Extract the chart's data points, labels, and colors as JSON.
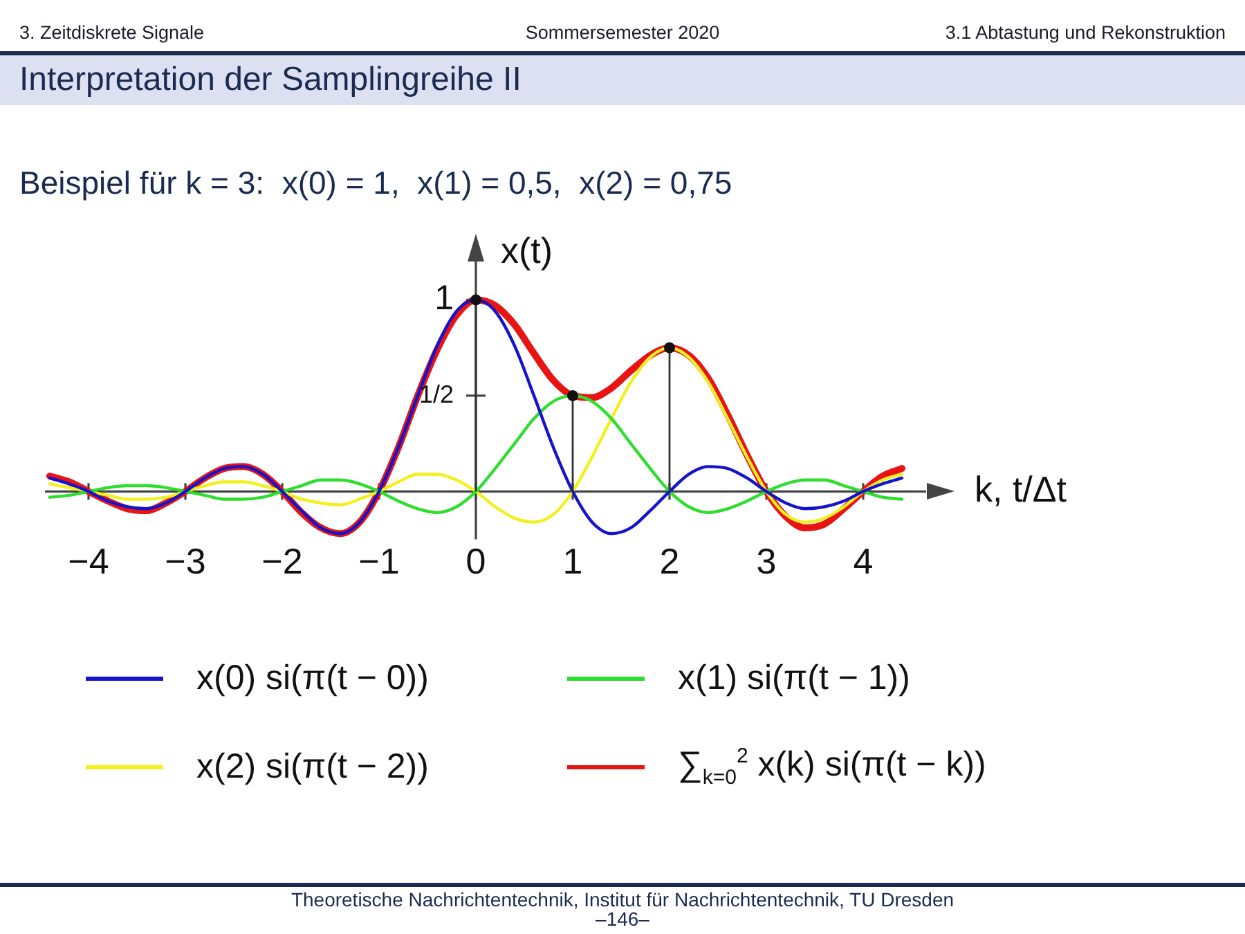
{
  "chart_data": {
    "type": "line",
    "title": "Interpretation der Samplingreihe II",
    "subtitle": "Beispiel für k = 3:  x(0) = 1,  x(1) = 0,5,  x(2) = 0,75",
    "xlabel": "k, t/Δt",
    "ylabel": "x(t)",
    "annotations": [
      "3. Zeitdiskrete Signale",
      "Sommersemester 2020",
      "3.1 Abtastung und Rekonstruktion",
      "Theoretische Nachrichtentechnik, Institut für Nachrichtentechnik, TU Dresden",
      "–146–"
    ],
    "x": [
      -4.4,
      -4.2,
      -4,
      -3.8,
      -3.6,
      -3.4,
      -3.2,
      -3,
      -2.8,
      -2.6,
      -2.4,
      -2.2,
      -2,
      -1.8,
      -1.6,
      -1.4,
      -1.2,
      -1,
      -0.8,
      -0.6,
      -0.4,
      -0.2,
      0,
      0.2,
      0.4,
      0.6,
      0.8,
      1,
      1.2,
      1.4,
      1.6,
      1.8,
      2,
      2.2,
      2.4,
      2.6,
      2.8,
      3,
      3.2,
      3.4,
      3.6,
      3.8,
      4,
      4.2,
      4.4
    ],
    "series": [
      {
        "name": "x(0) si(π(t − 0))",
        "color": "#1414cc",
        "values": [
          0.07,
          0.04,
          0,
          -0.05,
          -0.08,
          -0.09,
          -0.06,
          0,
          0.07,
          0.12,
          0.13,
          0.09,
          0,
          -0.1,
          -0.19,
          -0.22,
          -0.16,
          0,
          0.23,
          0.5,
          0.76,
          0.94,
          1,
          0.94,
          0.76,
          0.5,
          0.23,
          0,
          -0.16,
          -0.22,
          -0.19,
          -0.1,
          0,
          0.09,
          0.13,
          0.12,
          0.07,
          0,
          -0.06,
          -0.09,
          -0.08,
          -0.05,
          0,
          0.04,
          0.07
        ]
      },
      {
        "name": "x(1) si(π(t − 1))",
        "color": "#2ede2e",
        "values": [
          -0.03,
          -0.02,
          0,
          0.02,
          0.03,
          0.03,
          0.02,
          0,
          -0.02,
          -0.04,
          -0.04,
          -0.03,
          0,
          0.03,
          0.06,
          0.06,
          0.04,
          0,
          -0.05,
          -0.09,
          -0.11,
          -0.08,
          0,
          0.12,
          0.25,
          0.38,
          0.47,
          0.5,
          0.47,
          0.38,
          0.25,
          0.12,
          0,
          -0.08,
          -0.11,
          -0.09,
          -0.05,
          0,
          0.04,
          0.06,
          0.06,
          0.03,
          0,
          -0.03,
          -0.04
        ]
      },
      {
        "name": "x(2) si(π(t − 2))",
        "color": "#f2f01e",
        "values": [
          0.04,
          0.02,
          0,
          -0.02,
          -0.04,
          -0.04,
          -0.03,
          0,
          0.03,
          0.05,
          0.05,
          0.03,
          0,
          -0.04,
          -0.06,
          -0.07,
          -0.04,
          0,
          0.05,
          0.09,
          0.09,
          0.06,
          0,
          -0.08,
          -0.14,
          -0.16,
          -0.12,
          0,
          0.18,
          0.38,
          0.57,
          0.7,
          0.75,
          0.7,
          0.57,
          0.38,
          0.18,
          0,
          -0.12,
          -0.16,
          -0.14,
          -0.08,
          0,
          0.06,
          0.09
        ]
      },
      {
        "name": "∑$_{k=0}$$^{2}$ x(k) si(π(t − k))",
        "color": "#e81414",
        "values": [
          0.08,
          0.05,
          0,
          -0.05,
          -0.09,
          -0.1,
          -0.06,
          0,
          0.07,
          0.12,
          0.13,
          0.09,
          0,
          -0.11,
          -0.19,
          -0.22,
          -0.16,
          0,
          0.23,
          0.5,
          0.74,
          0.92,
          1,
          0.97,
          0.87,
          0.72,
          0.58,
          0.5,
          0.49,
          0.54,
          0.63,
          0.71,
          0.75,
          0.71,
          0.59,
          0.4,
          0.19,
          0,
          -0.13,
          -0.19,
          -0.17,
          -0.09,
          0,
          0.08,
          0.12
        ]
      },
      {
        "type": "lollipop",
        "color": "#111111",
        "x": [
          0,
          1,
          2
        ],
        "values": [
          1,
          0.5,
          0.75
        ]
      }
    ],
    "xlim": [
      -4.45,
      4.65
    ],
    "ylim": [
      -0.25,
      1.2
    ],
    "xticks": [
      -4,
      -3,
      -2,
      -1,
      0,
      1,
      2,
      3,
      4
    ],
    "yticks": [
      {
        "value": 0.5,
        "label": "1/2"
      },
      1
    ],
    "legend": "bottom"
  }
}
